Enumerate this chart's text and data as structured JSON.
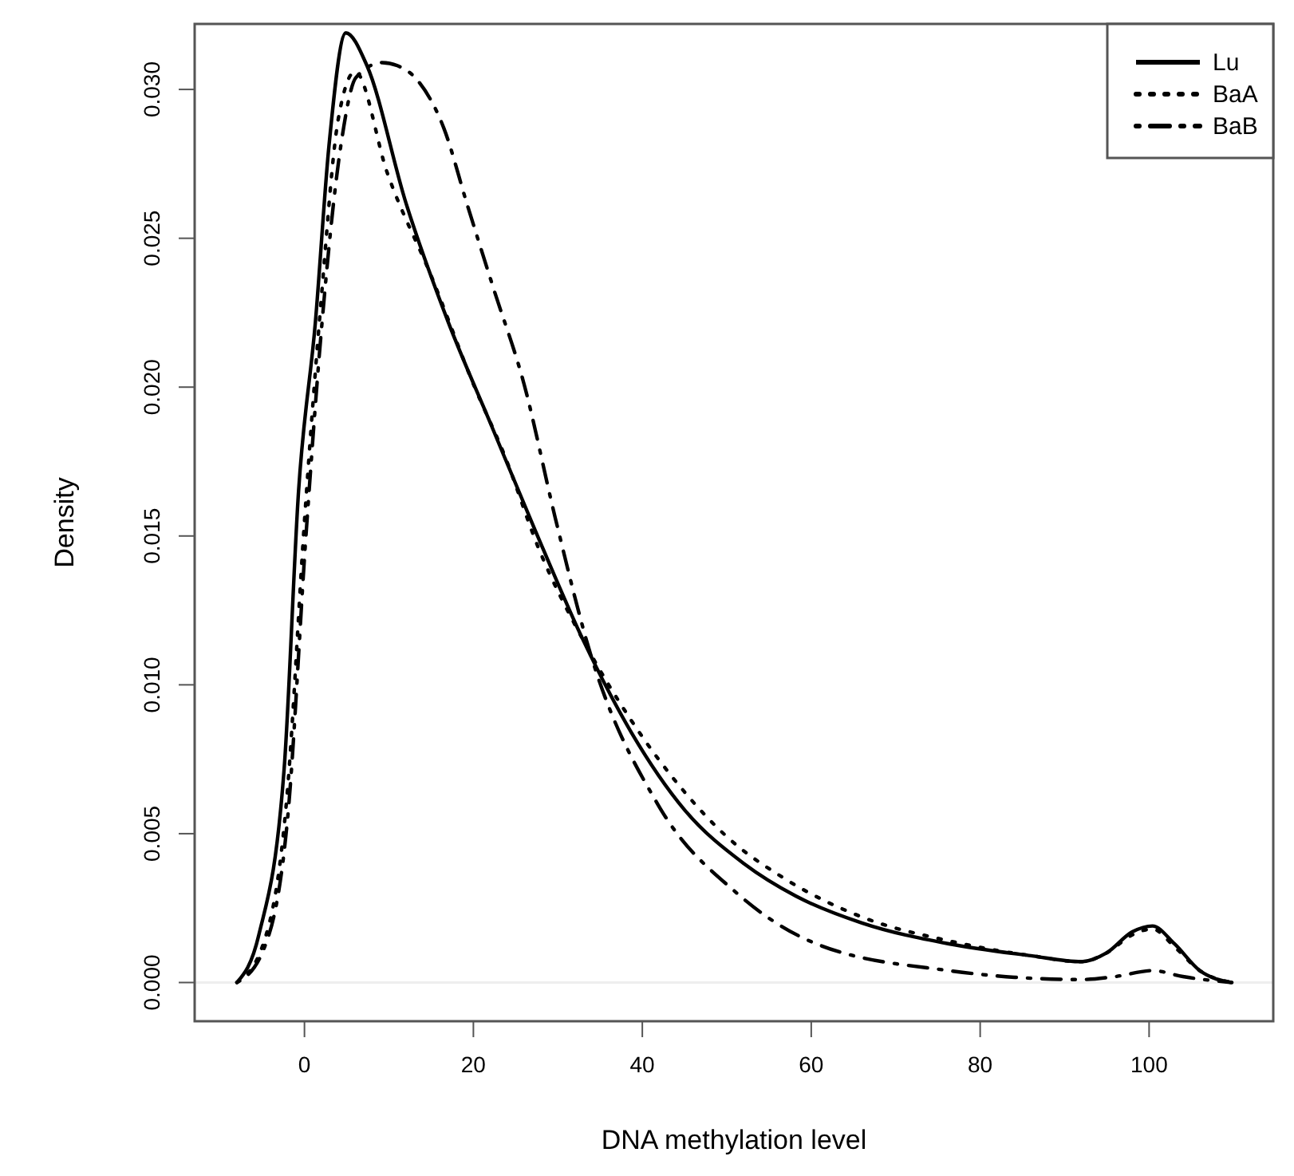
{
  "chart_data": {
    "type": "line",
    "xlabel": "DNA methylation level",
    "ylabel": "Density",
    "xlim": [
      -13,
      114.7
    ],
    "ylim": [
      -0.0013,
      0.0322
    ],
    "xticks": [
      0,
      20,
      40,
      60,
      80,
      100
    ],
    "yticks": [
      {
        "value": 0,
        "label": "0.000"
      },
      {
        "value": 0.005,
        "label": "0.005"
      },
      {
        "value": 0.01,
        "label": "0.010"
      },
      {
        "value": 0.015,
        "label": "0.015"
      },
      {
        "value": 0.02,
        "label": "0.020"
      },
      {
        "value": 0.025,
        "label": "0.025"
      },
      {
        "value": 0.03,
        "label": "0.030"
      }
    ],
    "legend": "top right",
    "ref_lines": [
      {
        "axis": "y",
        "value": 0,
        "color": "#eeeeee"
      }
    ],
    "series": [
      {
        "name": "Lu",
        "color": "#000000",
        "line_style": "solid",
        "x": [
          -8,
          -5.4,
          -2.4,
          -0.7,
          1.3,
          2.9,
          4.9,
          7.4,
          12,
          17,
          22,
          27.3,
          33,
          38.7,
          45,
          52,
          58.2,
          66,
          76.3,
          86,
          92,
          95,
          98,
          100.4,
          103,
          106,
          109.8
        ],
        "values": [
          0,
          0.0016,
          0.0072,
          0.0165,
          0.0222,
          0.0281,
          0.0319,
          0.0308,
          0.0262,
          0.0222,
          0.0188,
          0.0152,
          0.0115,
          0.0084,
          0.0058,
          0.004,
          0.0029,
          0.002,
          0.0013,
          0.0009,
          0.0007,
          0.001,
          0.0017,
          0.0019,
          0.0013,
          0.0004,
          0
        ]
      },
      {
        "name": "BaA",
        "color": "#000000",
        "line_style": "dotted",
        "x": [
          -8,
          -5,
          -2,
          0,
          2,
          4,
          6,
          9.8,
          15.2,
          20,
          23.7,
          27.7,
          33,
          38.7,
          45,
          50,
          56.8,
          66,
          76.3,
          86,
          92,
          95,
          98,
          100.4,
          103,
          106,
          109.8
        ],
        "values": [
          0,
          0.0012,
          0.0065,
          0.0155,
          0.023,
          0.029,
          0.0306,
          0.0272,
          0.0236,
          0.0201,
          0.0177,
          0.0146,
          0.0115,
          0.0088,
          0.0064,
          0.0049,
          0.0035,
          0.0022,
          0.0014,
          0.0009,
          0.0007,
          0.001,
          0.0016,
          0.0018,
          0.0012,
          0.0004,
          0
        ]
      },
      {
        "name": "BaB",
        "color": "#000000",
        "line_style": "dashdot",
        "x": [
          -8,
          -5,
          -2,
          0.2,
          2,
          4.3,
          6.1,
          9.2,
          11,
          13.4,
          16.5,
          19.3,
          22.4,
          26,
          29.7,
          33.8,
          41.8,
          51.2,
          60.6,
          76.3,
          92,
          96,
          100.4,
          104,
          109.8
        ],
        "values": [
          0,
          0.001,
          0.0055,
          0.0151,
          0.0219,
          0.0281,
          0.0304,
          0.0309,
          0.0308,
          0.0303,
          0.0287,
          0.0261,
          0.0233,
          0.0201,
          0.0156,
          0.0111,
          0.006,
          0.003,
          0.0013,
          0.0004,
          0.0001,
          0.0002,
          0.0004,
          0.0002,
          0
        ]
      }
    ]
  }
}
